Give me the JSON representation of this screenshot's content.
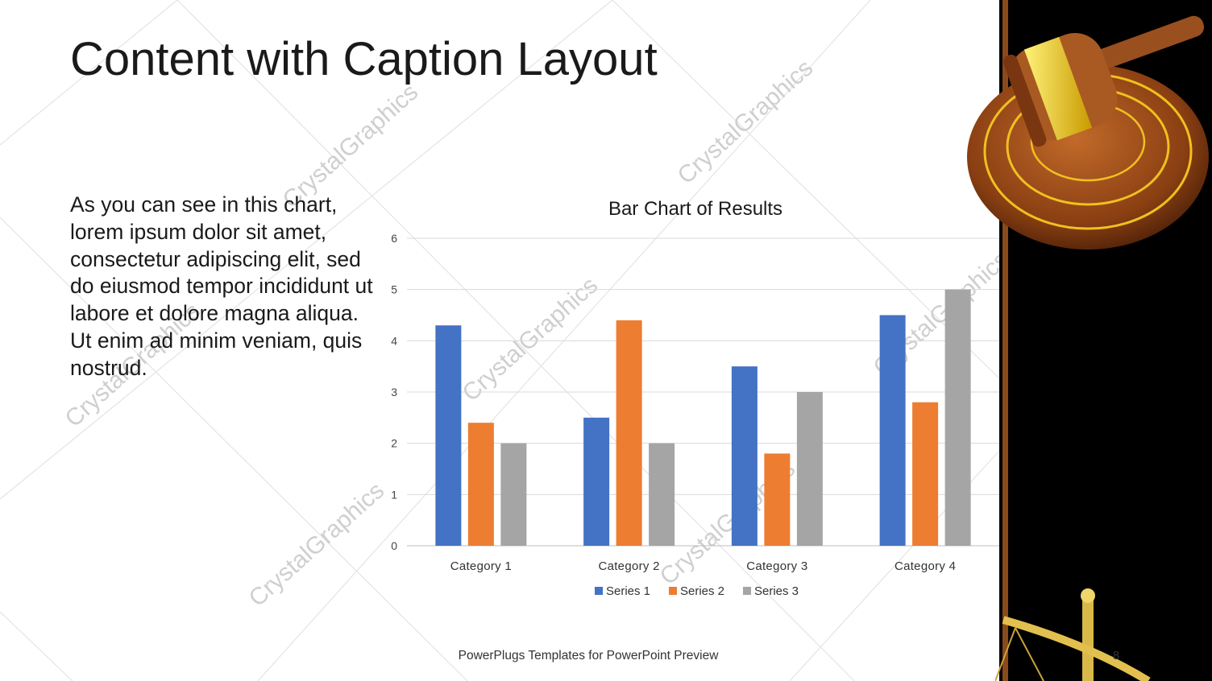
{
  "slide": {
    "title": "Content with Caption Layout",
    "caption": "As you can see in this chart, lorem ipsum dolor sit amet, consectetur adipiscing elit, sed do eiusmod tempor incididunt ut labore et dolore magna aliqua. Ut enim ad minim veniam, quis nostrud.",
    "footer": "PowerPlugs Templates for PowerPoint Preview",
    "page_number": "8",
    "watermark_text": "CrystalGraphics"
  },
  "chart_data": {
    "type": "bar",
    "title": "Bar Chart of Results",
    "categories": [
      "Category 1",
      "Category 2",
      "Category 3",
      "Category 4"
    ],
    "series": [
      {
        "name": "Series 1",
        "values": [
          4.3,
          2.5,
          3.5,
          4.5
        ],
        "color": "#4472C4"
      },
      {
        "name": "Series 2",
        "values": [
          2.4,
          4.4,
          1.8,
          2.8
        ],
        "color": "#ED7D31"
      },
      {
        "name": "Series 3",
        "values": [
          2,
          2,
          3,
          5
        ],
        "color": "#A5A5A5"
      }
    ],
    "ylim": [
      0,
      6
    ],
    "yticks": [
      "0",
      "1",
      "2",
      "3",
      "4",
      "5",
      "6"
    ],
    "grid": true,
    "legend_position": "bottom"
  },
  "colors": {
    "panel": "#000000",
    "stripe": "#8a4a1a",
    "wood": "#9a4f1e",
    "brass": "#e8c000"
  }
}
